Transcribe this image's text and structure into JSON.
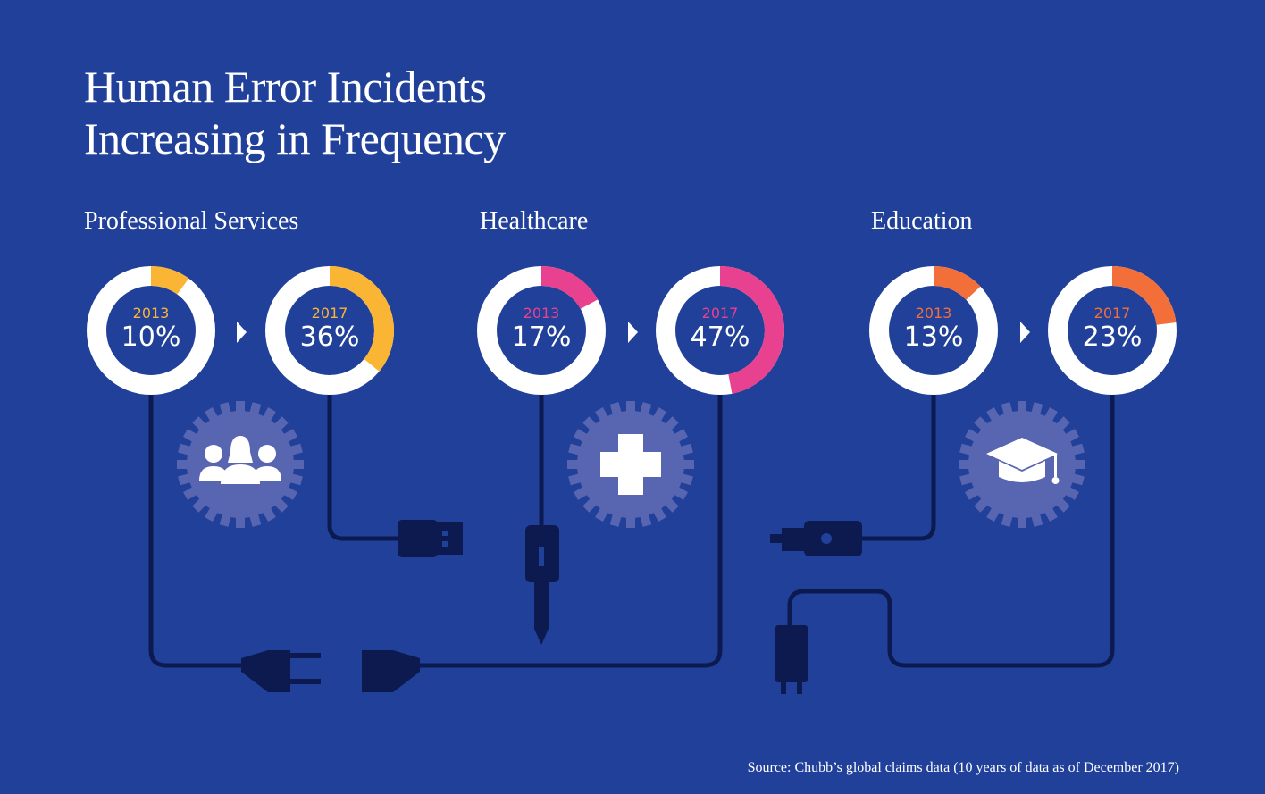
{
  "title": [
    "Human Error Incidents",
    "Increasing in Frequency"
  ],
  "source": "Source: Chubb’s global claims data  (10 years of data as of December 2017)",
  "colors": {
    "background": "#21409a",
    "cable": "#0c1a50",
    "gear": "#5865b0",
    "ring": "#ffffff"
  },
  "chart_data": {
    "type": "pie",
    "variant": "donut",
    "groups": [
      {
        "name": "Professional Services",
        "color": "#fbb535",
        "icon": "people-icon",
        "values": [
          {
            "year": "2013",
            "value": 10,
            "label": "10%"
          },
          {
            "year": "2017",
            "value": 36,
            "label": "36%"
          }
        ]
      },
      {
        "name": "Healthcare",
        "color": "#e8418f",
        "icon": "medical-cross-icon",
        "values": [
          {
            "year": "2013",
            "value": 17,
            "label": "17%"
          },
          {
            "year": "2017",
            "value": 47,
            "label": "47%"
          }
        ]
      },
      {
        "name": "Education",
        "color": "#f26f3a",
        "icon": "graduation-cap-icon",
        "values": [
          {
            "year": "2013",
            "value": 13,
            "label": "13%"
          },
          {
            "year": "2017",
            "value": 23,
            "label": "23%"
          }
        ]
      }
    ]
  }
}
